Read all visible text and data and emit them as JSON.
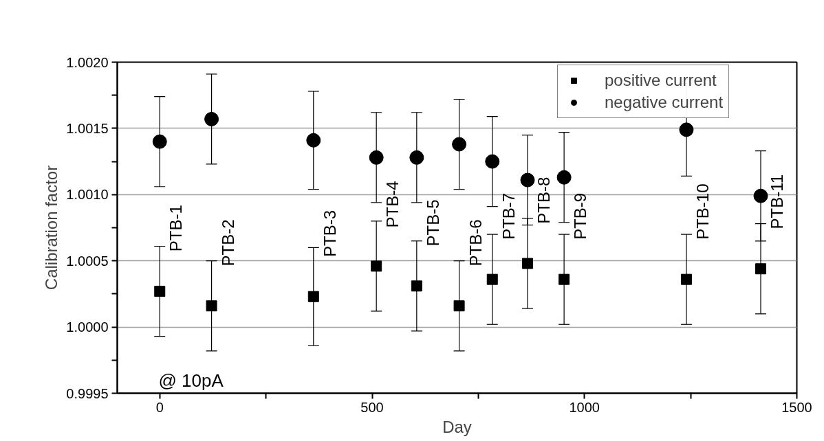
{
  "chart_data": {
    "type": "scatter",
    "title": "@ 10pA",
    "xlabel": "Day",
    "ylabel": "Calibration factor",
    "x": [
      0,
      122,
      362,
      510,
      605,
      705,
      783,
      866,
      952,
      1240,
      1415
    ],
    "series": [
      {
        "name": "positive current",
        "color": "#000000",
        "marker": "square",
        "values": [
          1.00027,
          1.00016,
          1.00023,
          1.00046,
          1.00031,
          1.00016,
          1.00036,
          1.00048,
          1.00036,
          1.00036,
          1.00044
        ],
        "errors": [
          0.00034,
          0.00034,
          0.00037,
          0.00034,
          0.00034,
          0.00034,
          0.00034,
          0.00034,
          0.00034,
          0.00034,
          0.00034
        ]
      },
      {
        "name": "negative current",
        "color": "#000000",
        "marker": "circle",
        "values": [
          1.0014,
          1.00157,
          1.00141,
          1.00128,
          1.00128,
          1.00138,
          1.00125,
          1.00111,
          1.00113,
          1.00149,
          1.00099
        ],
        "errors": [
          0.00034,
          0.00034,
          0.00037,
          0.00034,
          0.00034,
          0.00034,
          0.00034,
          0.00034,
          0.00034,
          0.00035,
          0.00034
        ]
      }
    ],
    "annotations": [
      {
        "text": "PTB-1",
        "x": 0,
        "y": 1.00057
      },
      {
        "text": "PTB-2",
        "x": 122,
        "y": 1.00046
      },
      {
        "text": "PTB-3",
        "x": 362,
        "y": 1.00053
      },
      {
        "text": "PTB-4",
        "x": 510,
        "y": 1.00075
      },
      {
        "text": "PTB-5",
        "x": 605,
        "y": 1.00061
      },
      {
        "text": "PTB-6",
        "x": 705,
        "y": 1.00046
      },
      {
        "text": "PTB-7",
        "x": 783,
        "y": 1.00066
      },
      {
        "text": "PTB-8",
        "x": 866,
        "y": 1.00078
      },
      {
        "text": "PTB-9",
        "x": 952,
        "y": 1.00066
      },
      {
        "text": "PTB-10",
        "x": 1240,
        "y": 1.00066
      },
      {
        "text": "PTB-11",
        "x": 1415,
        "y": 1.00074
      }
    ],
    "xlim": [
      -100,
      1500
    ],
    "xticks": [
      0,
      {
        "value": 250,
        "label": null
      },
      500,
      {
        "value": 750,
        "label": null
      },
      1000,
      {
        "value": 1250,
        "label": null
      },
      1500
    ],
    "ylim": [
      0.9995,
      1.002
    ],
    "yticks": [
      {
        "value": 0.9995,
        "label": "0.9995"
      },
      {
        "value": 0.99975,
        "label": null
      },
      {
        "value": 1.0,
        "label": "1.0000"
      },
      {
        "value": 1.00025,
        "label": null
      },
      {
        "value": 1.0005,
        "label": "1.0005"
      },
      {
        "value": 1.00075,
        "label": null
      },
      {
        "value": 1.001,
        "label": "1.0010"
      },
      {
        "value": 1.00125,
        "label": null
      },
      {
        "value": 1.0015,
        "label": "1.0015"
      },
      {
        "value": 1.00175,
        "label": null
      },
      {
        "value": 1.002,
        "label": "1.0020"
      }
    ],
    "grid": "y",
    "legend": "top right"
  }
}
